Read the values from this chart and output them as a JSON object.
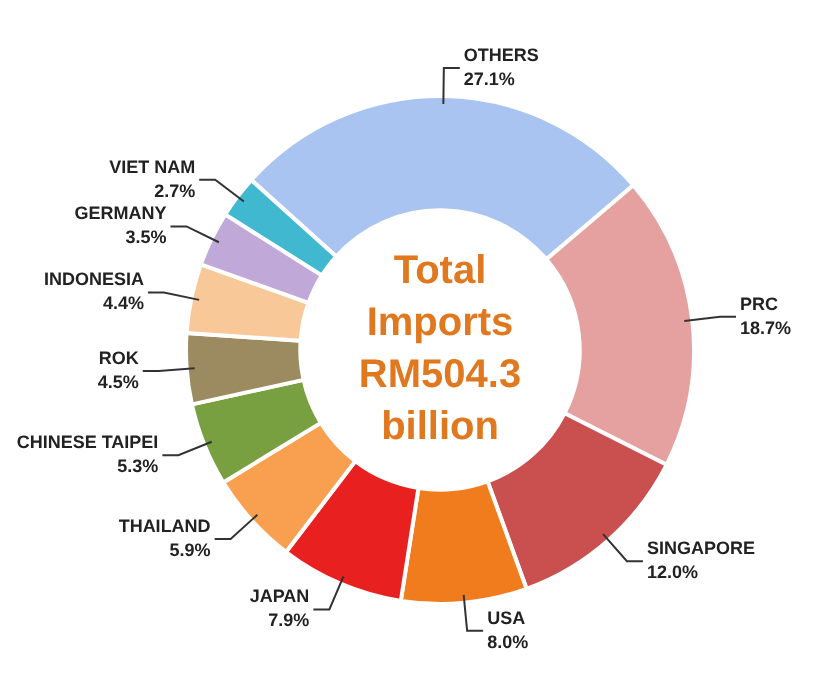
{
  "chart_data": {
    "type": "donut",
    "title": "Total Imports RM504.3 billion",
    "categories": [
      "OTHERS",
      "PRC",
      "SINGAPORE",
      "USA",
      "JAPAN",
      "THAILAND",
      "CHINESE TAIPEI",
      "ROK",
      "INDONESIA",
      "GERMANY",
      "VIET NAM"
    ],
    "values": [
      27.1,
      18.7,
      12.0,
      8.0,
      7.9,
      5.9,
      5.3,
      4.5,
      4.4,
      3.5,
      2.7
    ],
    "value_labels": [
      "27.1%",
      "18.7%",
      "12.0%",
      "8.0%",
      "7.9%",
      "5.9%",
      "5.3%",
      "4.5%",
      "4.4%",
      "3.5%",
      "2.7%"
    ],
    "colors": [
      "#a9c4f0",
      "#e5a0a0",
      "#c9504e",
      "#f07c1e",
      "#e82020",
      "#f8a050",
      "#79a040",
      "#9c8a60",
      "#f8c898",
      "#c0a8d8",
      "#40b8d0"
    ],
    "legend": false
  }
}
